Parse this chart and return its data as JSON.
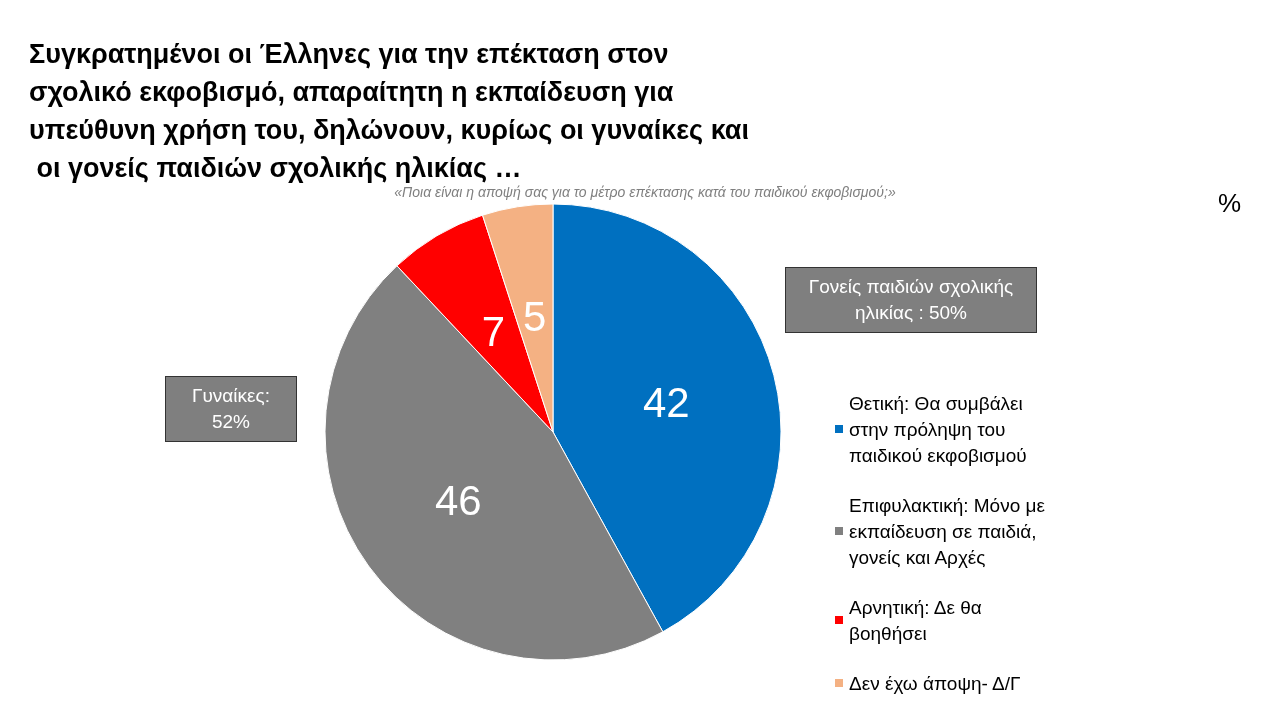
{
  "chart_data": {
    "type": "pie",
    "title": "Συγκρατημένοι οι Έλληνες για την επέκταση στον σχολικό εκφοβισμό, απαραίτητη η εκπαίδευση για υπεύθυνη χρήση του, δηλώνουν, κυρίως οι γυναίκες και οι γονείς παιδιών σχολικής ηλικίας …",
    "subtitle": "«Ποια είναι η αποψή σας για το μέτρο επέκτασης κατά του παιδικού εκφοβισμού;»",
    "categories": [
      "Θετική: Θα συμβάλει στην πρόληψη του παιδικού εκφοβισμού",
      "Επιφυλακτική: Μόνο με εκπαίδευση σε παιδιά, γονείς και Αρχές",
      "Αρνητική: Δε θα βοηθήσει",
      "Δεν έχω άποψη- Δ/Γ"
    ],
    "values": [
      42,
      46,
      7,
      5
    ],
    "colors": [
      "#0070c0",
      "#808080",
      "#ff0000",
      "#f4b183"
    ],
    "data_labels": true,
    "legend": "right",
    "annotations": [
      "%",
      "Γονείς παιδιών σχολικής ηλικίας : 50%",
      "Γυναίκες: 52%"
    ]
  }
}
